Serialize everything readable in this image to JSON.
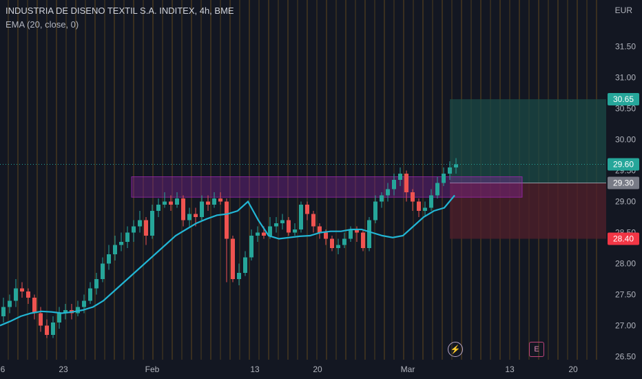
{
  "header": {
    "title": "INDUSTRIA DE DISENO TEXTIL S.A. INDITEX, 4h, BME",
    "indicator": "EMA (20, close, 0)",
    "currency": "EUR"
  },
  "chart_data": {
    "type": "candlestick",
    "y_axis": {
      "ticks": [
        31.5,
        31.0,
        30.5,
        30.0,
        29.5,
        29.0,
        28.5,
        28.0,
        27.5,
        27.0,
        26.5
      ],
      "ylim": [
        26.45,
        32.25
      ]
    },
    "x_axis": {
      "tick_labels": [
        "6",
        "23",
        "Feb",
        "13",
        "20",
        "Mar",
        "13",
        "20"
      ]
    },
    "price_labels": [
      {
        "text": "30.65",
        "value": 30.65,
        "color": "#26a69a"
      },
      {
        "text": "29.60",
        "value": 29.6,
        "color": "#26a69a"
      },
      {
        "text": "29.30",
        "value": 29.3,
        "color": "#787b86"
      },
      {
        "text": "28.40",
        "value": 28.4,
        "color": "#f23645"
      }
    ],
    "ema_20": [
      27.0,
      27.07,
      27.15,
      27.2,
      27.23,
      27.22,
      27.2,
      27.22,
      27.25,
      27.3,
      27.4,
      27.55,
      27.7,
      27.85,
      28.0,
      28.15,
      28.3,
      28.45,
      28.55,
      28.65,
      28.72,
      28.78,
      28.8,
      28.85,
      29.0,
      28.7,
      28.45,
      28.4,
      28.42,
      28.44,
      28.45,
      28.5,
      28.52,
      28.52,
      28.55,
      28.55,
      28.5,
      28.45,
      28.42,
      28.45,
      28.6,
      28.75,
      28.85,
      28.9,
      29.1
    ],
    "candles": [
      [
        27.15,
        27.3,
        27.45,
        27.05
      ],
      [
        27.3,
        27.4,
        27.5,
        27.2
      ],
      [
        27.4,
        27.6,
        27.75,
        27.3
      ],
      [
        27.6,
        27.55,
        27.7,
        27.45
      ],
      [
        27.55,
        27.45,
        27.6,
        27.35
      ],
      [
        27.45,
        27.2,
        27.5,
        27.1
      ],
      [
        27.2,
        27.0,
        27.3,
        26.9
      ],
      [
        27.0,
        26.85,
        27.1,
        26.8
      ],
      [
        26.85,
        27.05,
        27.15,
        26.8
      ],
      [
        27.05,
        27.2,
        27.3,
        26.95
      ],
      [
        27.2,
        27.25,
        27.35,
        27.1
      ],
      [
        27.25,
        27.2,
        27.35,
        27.1
      ],
      [
        27.2,
        27.3,
        27.4,
        27.15
      ],
      [
        27.3,
        27.4,
        27.5,
        27.2
      ],
      [
        27.4,
        27.6,
        27.7,
        27.35
      ],
      [
        27.6,
        27.75,
        27.85,
        27.5
      ],
      [
        27.75,
        28.0,
        28.1,
        27.7
      ],
      [
        28.0,
        28.15,
        28.3,
        27.9
      ],
      [
        28.15,
        28.3,
        28.45,
        28.05
      ],
      [
        28.3,
        28.35,
        28.5,
        28.2
      ],
      [
        28.35,
        28.5,
        28.6,
        28.25
      ],
      [
        28.5,
        28.6,
        28.7,
        28.35
      ],
      [
        28.6,
        28.7,
        28.85,
        28.5
      ],
      [
        28.7,
        28.45,
        28.75,
        28.3
      ],
      [
        28.45,
        28.85,
        28.95,
        28.4
      ],
      [
        28.85,
        28.95,
        29.05,
        28.75
      ],
      [
        28.95,
        29.0,
        29.15,
        28.9
      ],
      [
        29.0,
        28.95,
        29.1,
        28.85
      ],
      [
        28.95,
        29.05,
        29.15,
        28.9
      ],
      [
        29.05,
        28.7,
        29.1,
        28.6
      ],
      [
        28.7,
        28.8,
        28.9,
        28.6
      ],
      [
        28.8,
        28.75,
        28.9,
        28.6
      ],
      [
        28.75,
        29.0,
        29.1,
        28.7
      ],
      [
        29.0,
        28.95,
        29.1,
        28.85
      ],
      [
        28.95,
        29.05,
        29.15,
        28.9
      ],
      [
        29.05,
        29.0,
        29.15,
        28.95
      ],
      [
        29.0,
        28.4,
        29.05,
        27.7
      ],
      [
        28.4,
        27.75,
        28.45,
        27.7
      ],
      [
        27.75,
        27.85,
        28.0,
        27.65
      ],
      [
        27.85,
        28.1,
        28.2,
        27.8
      ],
      [
        28.1,
        28.45,
        28.55,
        28.05
      ],
      [
        28.45,
        28.5,
        28.6,
        28.35
      ],
      [
        28.5,
        28.45,
        28.6,
        28.4
      ],
      [
        28.45,
        28.6,
        28.75,
        28.4
      ],
      [
        28.6,
        28.65,
        28.75,
        28.5
      ],
      [
        28.65,
        28.7,
        28.8,
        28.55
      ],
      [
        28.7,
        28.5,
        28.75,
        28.45
      ],
      [
        28.5,
        28.55,
        28.65,
        28.45
      ],
      [
        28.55,
        28.95,
        29.0,
        28.5
      ],
      [
        28.95,
        28.8,
        29.0,
        28.7
      ],
      [
        28.8,
        28.6,
        28.85,
        28.5
      ],
      [
        28.6,
        28.5,
        28.65,
        28.4
      ],
      [
        28.5,
        28.4,
        28.55,
        28.3
      ],
      [
        28.4,
        28.25,
        28.45,
        28.2
      ],
      [
        28.25,
        28.3,
        28.4,
        28.15
      ],
      [
        28.3,
        28.4,
        28.5,
        28.25
      ],
      [
        28.4,
        28.55,
        28.6,
        28.35
      ],
      [
        28.55,
        28.5,
        28.6,
        28.35
      ],
      [
        28.5,
        28.25,
        28.55,
        28.2
      ],
      [
        28.25,
        28.7,
        28.75,
        28.2
      ],
      [
        28.7,
        29.0,
        29.1,
        28.65
      ],
      [
        29.0,
        29.1,
        29.15,
        28.9
      ],
      [
        29.1,
        29.2,
        29.3,
        29.0
      ],
      [
        29.2,
        29.35,
        29.45,
        29.1
      ],
      [
        29.35,
        29.45,
        29.55,
        29.25
      ],
      [
        29.45,
        29.15,
        29.5,
        29.0
      ],
      [
        29.15,
        29.0,
        29.2,
        28.85
      ],
      [
        29.0,
        28.85,
        29.05,
        28.75
      ],
      [
        28.85,
        28.9,
        29.0,
        28.75
      ],
      [
        28.9,
        29.1,
        29.2,
        28.85
      ],
      [
        29.1,
        29.3,
        29.4,
        29.05
      ],
      [
        29.3,
        29.45,
        29.55,
        29.25
      ],
      [
        29.45,
        29.55,
        29.65,
        29.35
      ],
      [
        29.55,
        29.6,
        29.7,
        29.45
      ]
    ],
    "zone_box": {
      "top": 29.4,
      "bottom": 29.07,
      "color": "#9c27b0"
    },
    "target_box": {
      "top": 30.65,
      "bottom": 29.3
    },
    "stop_box": {
      "top": 29.3,
      "bottom": 28.4
    },
    "entry_line": 29.6
  }
}
